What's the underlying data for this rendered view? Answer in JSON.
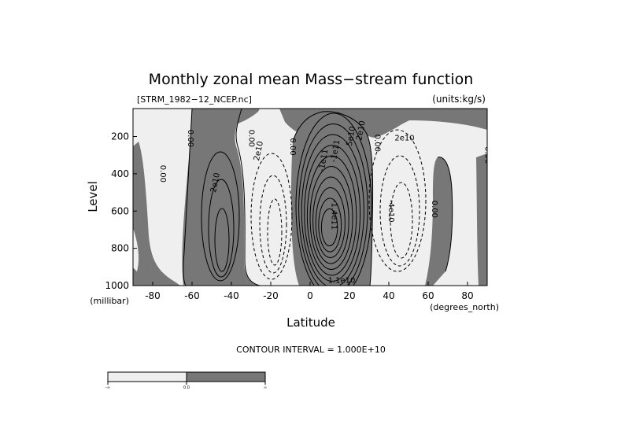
{
  "chart_data": {
    "type": "contour",
    "title": "Monthly zonal mean Mass−stream function",
    "file_label": "[STRM_1982−12_NCEP.nc]",
    "units_label": "(units:kg/s)",
    "xlabel": "Latitude",
    "x_units": "(degrees_north)",
    "ylabel": "Level",
    "y_units": "(millibar)",
    "xlim": [
      -90,
      90
    ],
    "ylim": [
      1000,
      50
    ],
    "x_ticks": [
      -80,
      -60,
      -40,
      -20,
      0,
      20,
      40,
      60,
      80
    ],
    "y_ticks": [
      200,
      400,
      600,
      800,
      1000
    ],
    "contour_interval_text": "CONTOUR INTERVAL = 1.000E+10",
    "shading": {
      "light": "#efefef",
      "dark": "#777777",
      "negative_fill": "light",
      "positive_fill": "dark"
    },
    "contour_labels": [
      {
        "text": "0.00",
        "x": -76,
        "y": 400,
        "rot": 90
      },
      {
        "text": "0.00",
        "x": -62,
        "y": 210,
        "rot": 90
      },
      {
        "text": "2e10",
        "x": -47,
        "y": 450,
        "rot": -78
      },
      {
        "text": "0.00",
        "x": -31,
        "y": 210,
        "rot": 90
      },
      {
        "text": "2e10",
        "x": -25,
        "y": 280,
        "rot": -78
      },
      {
        "text": "0.00",
        "x": -10,
        "y": 255,
        "rot": 90
      },
      {
        "text": "-1e11",
        "x": 8,
        "y": 330,
        "rot": -80
      },
      {
        "text": "-1e11",
        "x": 14,
        "y": 280,
        "rot": -80
      },
      {
        "text": "2e10",
        "x": 27,
        "y": 170,
        "rot": -80
      },
      {
        "text": "5e10",
        "x": 22,
        "y": 200,
        "rot": -80
      },
      {
        "text": "0.00",
        "x": 33,
        "y": 235,
        "rot": 90
      },
      {
        "text": "2e10",
        "x": 48,
        "y": 220,
        "rot": 0
      },
      {
        "text": "-1.4e11",
        "x": 11,
        "y": 620,
        "rot": 90
      },
      {
        "text": "-4e10",
        "x": 40,
        "y": 600,
        "rot": 90
      },
      {
        "text": "0.00",
        "x": 62,
        "y": 590,
        "rot": 90
      },
      {
        "text": "0.00",
        "x": 89,
        "y": 300,
        "rot": 90
      },
      {
        "text": "1.1e10",
        "x": 16,
        "y": 985,
        "rot": 0
      }
    ],
    "colorbar": {
      "ticks": [
        "-∞",
        "0.0",
        "∞"
      ]
    }
  }
}
